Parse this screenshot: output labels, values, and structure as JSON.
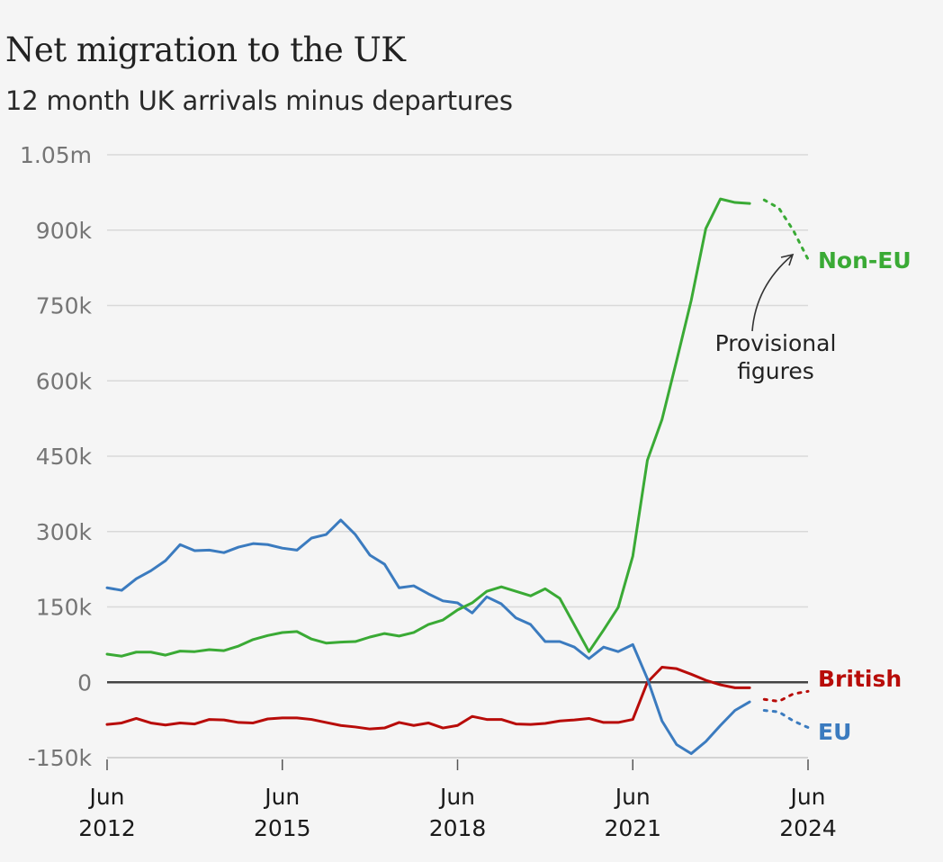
{
  "chart_data": {
    "type": "line",
    "title": "Net migration to the UK",
    "subtitle": "12 month UK arrivals minus departures",
    "xlabel": "",
    "ylabel": "",
    "ylim": [
      -150000,
      1050000
    ],
    "xlim": [
      2012.5,
      2024.5
    ],
    "y_ticks": [
      {
        "value": 1050000,
        "label": "1.05m"
      },
      {
        "value": 900000,
        "label": "900k"
      },
      {
        "value": 750000,
        "label": "750k"
      },
      {
        "value": 600000,
        "label": "600k"
      },
      {
        "value": 450000,
        "label": "450k"
      },
      {
        "value": 300000,
        "label": "300k"
      },
      {
        "value": 150000,
        "label": "150k"
      },
      {
        "value": 0,
        "label": "0"
      },
      {
        "value": -150000,
        "label": "-150k"
      }
    ],
    "x_ticks": [
      {
        "value": 2012.5,
        "line1": "Jun",
        "line2": "2012"
      },
      {
        "value": 2015.5,
        "line1": "Jun",
        "line2": "2015"
      },
      {
        "value": 2018.5,
        "line1": "Jun",
        "line2": "2018"
      },
      {
        "value": 2021.5,
        "line1": "Jun",
        "line2": "2021"
      },
      {
        "value": 2024.5,
        "line1": "Jun",
        "line2": "2024"
      }
    ],
    "grid": true,
    "x_start": 2012.5,
    "x_step": 0.25,
    "series": [
      {
        "name": "Non-EU",
        "color": "#3aaa35",
        "values": [
          56,
          52,
          60,
          60,
          54,
          62,
          61,
          65,
          63,
          72,
          85,
          93,
          99,
          101,
          86,
          78,
          80,
          81,
          90,
          97,
          92,
          99,
          115,
          124,
          144,
          158,
          181,
          190,
          181,
          172,
          186,
          167,
          114,
          61,
          104,
          149,
          251,
          442,
          523,
          640,
          760,
          903,
          962,
          955,
          953
        ],
        "provisional": [
          960,
          944,
          899,
          842
        ]
      },
      {
        "name": "British",
        "color": "#b80c09",
        "values": [
          -84,
          -81,
          -72,
          -81,
          -85,
          -81,
          -83,
          -74,
          -75,
          -80,
          -81,
          -73,
          -71,
          -71,
          -74,
          -80,
          -86,
          -89,
          -93,
          -91,
          -80,
          -86,
          -81,
          -91,
          -86,
          -68,
          -74,
          -74,
          -83,
          -84,
          -82,
          -77,
          -75,
          -72,
          -80,
          -80,
          -74,
          0,
          30,
          27,
          16,
          4,
          -5,
          -11,
          -11
        ],
        "provisional": [
          -34,
          -38,
          -23,
          -18
        ]
      },
      {
        "name": "EU",
        "color": "#3b7bbf",
        "values": [
          188,
          183,
          206,
          222,
          242,
          274,
          262,
          263,
          258,
          269,
          276,
          274,
          267,
          263,
          287,
          294,
          323,
          294,
          253,
          235,
          188,
          192,
          176,
          162,
          158,
          138,
          170,
          156,
          128,
          115,
          81,
          81,
          70,
          47,
          70,
          61,
          75,
          7,
          -77,
          -124,
          -142,
          -118,
          -86,
          -56,
          -39
        ],
        "provisional": [
          -56,
          -59,
          -77,
          -90
        ]
      }
    ],
    "value_unit": "thousands",
    "annotation": {
      "line1": "Provisional",
      "line2": "figures"
    }
  }
}
